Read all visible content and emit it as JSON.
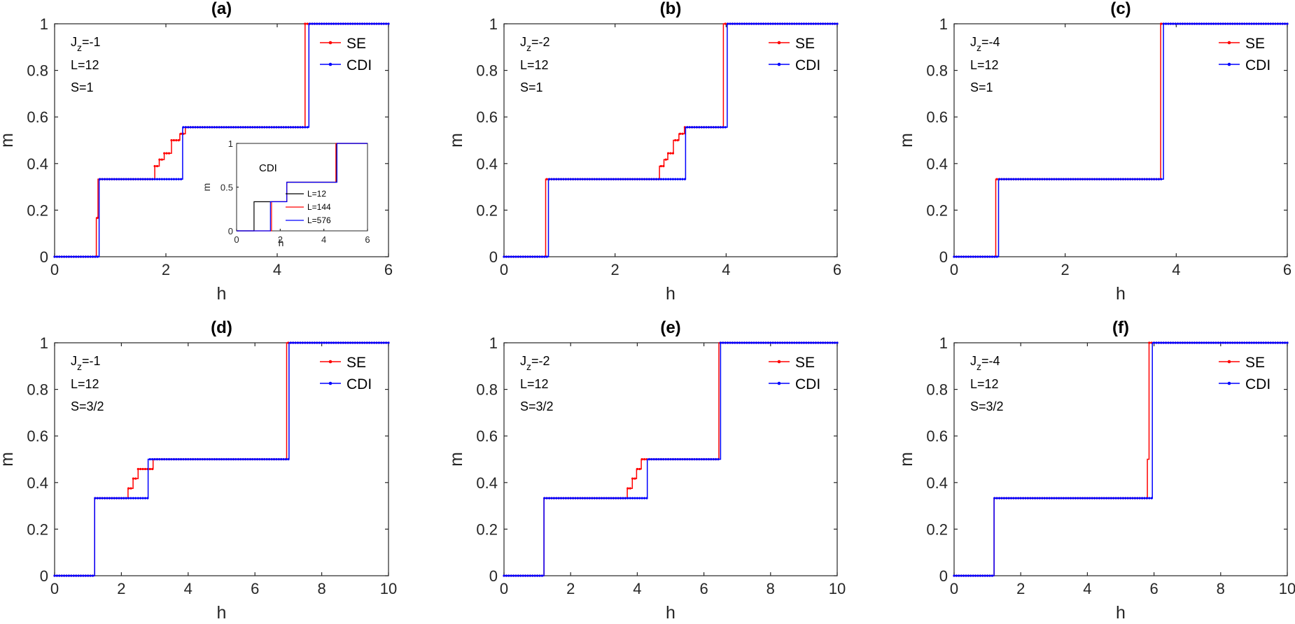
{
  "chart_data": [
    {
      "panel": "(a)",
      "type": "line",
      "xlabel": "h",
      "ylabel": "m",
      "xlim": [
        0,
        6
      ],
      "ylim": [
        0,
        1
      ],
      "xticks": [
        0,
        2,
        4,
        6
      ],
      "yticks": [
        0,
        0.2,
        0.4,
        0.6,
        0.8,
        1
      ],
      "xtick_labels": [
        "0",
        "2",
        "4",
        "6"
      ],
      "ytick_labels": [
        "0",
        "0.2",
        "0.4",
        "0.6",
        "0.8",
        "1"
      ],
      "params": {
        "jz_prefix": "J",
        "jz_sub": "z",
        "jz_value": "=-1",
        "L": "L=12",
        "S": "S=1"
      },
      "legend": {
        "position": "top-right",
        "entries": [
          "SE",
          "CDI"
        ]
      },
      "series": [
        {
          "name": "SE",
          "color": "#ff0000",
          "x": [
            0,
            0.75,
            0.75,
            0.78,
            0.78,
            1.8,
            1.8,
            1.88,
            1.88,
            1.97,
            1.97,
            2.1,
            2.1,
            2.25,
            2.25,
            2.35,
            2.35,
            4.5,
            4.5,
            6
          ],
          "y": [
            0,
            0,
            0.167,
            0.167,
            0.333,
            0.333,
            0.389,
            0.389,
            0.417,
            0.417,
            0.444,
            0.444,
            0.5,
            0.5,
            0.528,
            0.528,
            0.556,
            0.556,
            1,
            1
          ]
        },
        {
          "name": "CDI",
          "color": "#0000ff",
          "x": [
            0,
            0.8,
            0.8,
            2.3,
            2.3,
            4.57,
            4.57,
            6
          ],
          "y": [
            0,
            0,
            0.333,
            0.333,
            0.556,
            0.556,
            1,
            1
          ]
        }
      ],
      "inset": {
        "title": "CDI",
        "xlabel": "h",
        "ylabel": "m",
        "xlim": [
          0,
          6
        ],
        "ylim": [
          0,
          1
        ],
        "xticks": [
          0,
          2,
          4,
          6
        ],
        "yticks": [
          0,
          0.5,
          1
        ],
        "xtick_labels": [
          "0",
          "2",
          "4",
          "6"
        ],
        "ytick_labels": [
          "0",
          "0.5",
          "1"
        ],
        "series": [
          {
            "name": "L=12",
            "color": "#000000",
            "x": [
              0,
              0.8,
              0.8,
              2.3,
              2.3,
              4.57,
              4.57,
              6
            ],
            "y": [
              0,
              0,
              0.333,
              0.333,
              0.556,
              0.556,
              1,
              1
            ]
          },
          {
            "name": "L=144",
            "color": "#ff0000",
            "x": [
              0,
              1.6,
              1.6,
              2.3,
              2.3,
              4.55,
              4.55,
              6
            ],
            "y": [
              0,
              0,
              0.333,
              0.333,
              0.556,
              0.556,
              1,
              1
            ]
          },
          {
            "name": "L=576",
            "color": "#0000ff",
            "x": [
              0,
              1.55,
              1.55,
              2.3,
              2.3,
              4.6,
              4.6,
              6
            ],
            "y": [
              0,
              0,
              0.333,
              0.333,
              0.556,
              0.556,
              1,
              1
            ]
          }
        ]
      }
    },
    {
      "panel": "(b)",
      "type": "line",
      "xlabel": "h",
      "ylabel": "m",
      "xlim": [
        0,
        6
      ],
      "ylim": [
        0,
        1
      ],
      "xticks": [
        0,
        2,
        4,
        6
      ],
      "yticks": [
        0,
        0.2,
        0.4,
        0.6,
        0.8,
        1
      ],
      "xtick_labels": [
        "0",
        "2",
        "4",
        "6"
      ],
      "ytick_labels": [
        "0",
        "0.2",
        "0.4",
        "0.6",
        "0.8",
        "1"
      ],
      "params": {
        "jz_prefix": "J",
        "jz_sub": "z",
        "jz_value": "=-2",
        "L": "L=12",
        "S": "S=1"
      },
      "legend": {
        "position": "top-right",
        "entries": [
          "SE",
          "CDI"
        ]
      },
      "series": [
        {
          "name": "SE",
          "color": "#ff0000",
          "x": [
            0,
            0.75,
            0.75,
            2.8,
            2.8,
            2.88,
            2.88,
            2.95,
            2.95,
            3.05,
            3.05,
            3.15,
            3.15,
            3.25,
            3.25,
            3.95,
            3.95,
            6
          ],
          "y": [
            0,
            0,
            0.333,
            0.333,
            0.389,
            0.389,
            0.417,
            0.417,
            0.444,
            0.444,
            0.5,
            0.5,
            0.528,
            0.528,
            0.556,
            0.556,
            1,
            1
          ]
        },
        {
          "name": "CDI",
          "color": "#0000ff",
          "x": [
            0,
            0.8,
            0.8,
            3.27,
            3.27,
            4.02,
            4.02,
            6
          ],
          "y": [
            0,
            0,
            0.333,
            0.333,
            0.556,
            0.556,
            1,
            1
          ]
        }
      ]
    },
    {
      "panel": "(c)",
      "type": "line",
      "xlabel": "h",
      "ylabel": "m",
      "xlim": [
        0,
        6
      ],
      "ylim": [
        0,
        1
      ],
      "xticks": [
        0,
        2,
        4,
        6
      ],
      "yticks": [
        0,
        0.2,
        0.4,
        0.6,
        0.8,
        1
      ],
      "xtick_labels": [
        "0",
        "2",
        "4",
        "6"
      ],
      "ytick_labels": [
        "0",
        "0.2",
        "0.4",
        "0.6",
        "0.8",
        "1"
      ],
      "params": {
        "jz_prefix": "J",
        "jz_sub": "z",
        "jz_value": "=-4",
        "L": "L=12",
        "S": "S=1"
      },
      "legend": {
        "position": "top-right",
        "entries": [
          "SE",
          "CDI"
        ]
      },
      "series": [
        {
          "name": "SE",
          "color": "#ff0000",
          "x": [
            0,
            0.75,
            0.75,
            3.72,
            3.72,
            6
          ],
          "y": [
            0,
            0,
            0.333,
            0.333,
            1,
            1
          ]
        },
        {
          "name": "CDI",
          "color": "#0000ff",
          "x": [
            0,
            0.8,
            0.8,
            3.77,
            3.77,
            6
          ],
          "y": [
            0,
            0,
            0.333,
            0.333,
            1,
            1
          ]
        }
      ]
    },
    {
      "panel": "(d)",
      "type": "line",
      "xlabel": "h",
      "ylabel": "m",
      "xlim": [
        0,
        10
      ],
      "ylim": [
        0,
        1
      ],
      "xticks": [
        0,
        2,
        4,
        6,
        8,
        10
      ],
      "yticks": [
        0,
        0.2,
        0.4,
        0.6,
        0.8,
        1
      ],
      "xtick_labels": [
        "0",
        "2",
        "4",
        "6",
        "8",
        "10"
      ],
      "ytick_labels": [
        "0",
        "0.2",
        "0.4",
        "0.6",
        "0.8",
        "1"
      ],
      "params": {
        "jz_prefix": "J",
        "jz_sub": "z",
        "jz_value": "=-1",
        "L": "L=12",
        "S": "S=3/2"
      },
      "legend": {
        "position": "top-right",
        "entries": [
          "SE",
          "CDI"
        ]
      },
      "series": [
        {
          "name": "SE",
          "color": "#ff0000",
          "x": [
            0,
            1.2,
            1.2,
            2.2,
            2.2,
            2.35,
            2.35,
            2.5,
            2.5,
            2.65,
            2.65,
            2.95,
            2.95,
            3.0,
            3.0,
            6.95,
            6.95,
            10
          ],
          "y": [
            0,
            0,
            0.333,
            0.333,
            0.375,
            0.375,
            0.417,
            0.417,
            0.458,
            0.458,
            0.458,
            0.458,
            0.5,
            0.5,
            0.5,
            0.5,
            1,
            1
          ]
        },
        {
          "name": "CDI",
          "color": "#0000ff",
          "x": [
            0,
            1.2,
            1.2,
            2.8,
            2.8,
            7.02,
            7.02,
            10
          ],
          "y": [
            0,
            0,
            0.333,
            0.333,
            0.5,
            0.5,
            1,
            1
          ]
        }
      ]
    },
    {
      "panel": "(e)",
      "type": "line",
      "xlabel": "h",
      "ylabel": "m",
      "xlim": [
        0,
        10
      ],
      "ylim": [
        0,
        1
      ],
      "xticks": [
        0,
        2,
        4,
        6,
        8,
        10
      ],
      "yticks": [
        0,
        0.2,
        0.4,
        0.6,
        0.8,
        1
      ],
      "xtick_labels": [
        "0",
        "2",
        "4",
        "6",
        "8",
        "10"
      ],
      "ytick_labels": [
        "0",
        "0.2",
        "0.4",
        "0.6",
        "0.8",
        "1"
      ],
      "params": {
        "jz_prefix": "J",
        "jz_sub": "z",
        "jz_value": "=-2",
        "L": "L=12",
        "S": "S=3/2"
      },
      "legend": {
        "position": "top-right",
        "entries": [
          "SE",
          "CDI"
        ]
      },
      "series": [
        {
          "name": "SE",
          "color": "#ff0000",
          "x": [
            0,
            1.2,
            1.2,
            3.7,
            3.7,
            3.85,
            3.85,
            3.98,
            3.98,
            4.12,
            4.12,
            4.25,
            4.25,
            6.45,
            6.45,
            10
          ],
          "y": [
            0,
            0,
            0.333,
            0.333,
            0.375,
            0.375,
            0.417,
            0.417,
            0.458,
            0.458,
            0.5,
            0.5,
            0.5,
            0.5,
            1,
            1
          ]
        },
        {
          "name": "CDI",
          "color": "#0000ff",
          "x": [
            0,
            1.2,
            1.2,
            4.3,
            4.3,
            6.5,
            6.5,
            10
          ],
          "y": [
            0,
            0,
            0.333,
            0.333,
            0.5,
            0.5,
            1,
            1
          ]
        }
      ]
    },
    {
      "panel": "(f)",
      "type": "line",
      "xlabel": "h",
      "ylabel": "m",
      "xlim": [
        0,
        10
      ],
      "ylim": [
        0,
        1
      ],
      "xticks": [
        0,
        2,
        4,
        6,
        8,
        10
      ],
      "yticks": [
        0,
        0.2,
        0.4,
        0.6,
        0.8,
        1
      ],
      "xtick_labels": [
        "0",
        "2",
        "4",
        "6",
        "8",
        "10"
      ],
      "ytick_labels": [
        "0",
        "0.2",
        "0.4",
        "0.6",
        "0.8",
        "1"
      ],
      "params": {
        "jz_prefix": "J",
        "jz_sub": "z",
        "jz_value": "=-4",
        "L": "L=12",
        "S": "S=3/2"
      },
      "legend": {
        "position": "top-right",
        "entries": [
          "SE",
          "CDI"
        ]
      },
      "series": [
        {
          "name": "SE",
          "color": "#ff0000",
          "x": [
            0,
            1.2,
            1.2,
            5.8,
            5.8,
            5.85,
            5.85,
            10
          ],
          "y": [
            0,
            0,
            0.333,
            0.333,
            0.5,
            0.5,
            1,
            1
          ]
        },
        {
          "name": "CDI",
          "color": "#0000ff",
          "x": [
            0,
            1.2,
            1.2,
            5.95,
            5.95,
            10
          ],
          "y": [
            0,
            0,
            0.333,
            0.333,
            1,
            1
          ]
        }
      ]
    }
  ]
}
